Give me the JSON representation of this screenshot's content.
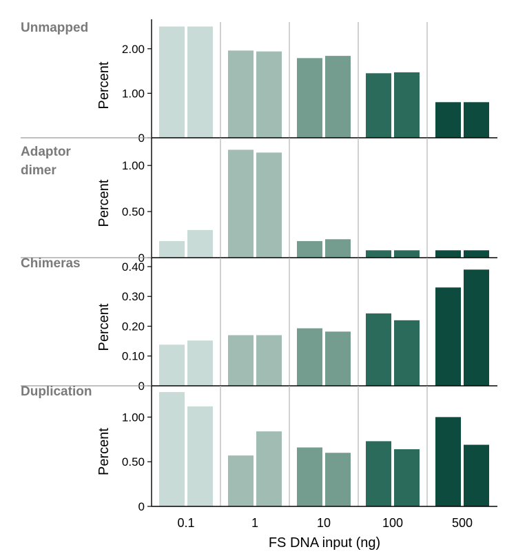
{
  "chart_data": {
    "type": "bar",
    "xlabel": "FS DNA input (ng)",
    "categories": [
      "0.1",
      "1",
      "10",
      "100",
      "500"
    ],
    "colors": [
      "#c9dbd6",
      "#a1bdb3",
      "#749d90",
      "#2b6b5c",
      "#0c4b3d"
    ],
    "panels": [
      {
        "title": "Unmapped",
        "ylabel": "Percent",
        "ylim": [
          0,
          2.6
        ],
        "ticks": [
          0,
          1.0,
          2.0
        ],
        "tick_labels": [
          "0",
          "1.00",
          "2.00"
        ],
        "values": [
          [
            2.5,
            2.5
          ],
          [
            1.96,
            1.94
          ],
          [
            1.79,
            1.84
          ],
          [
            1.45,
            1.47
          ],
          [
            0.8,
            0.8
          ]
        ]
      },
      {
        "title": "Adaptor dimer",
        "ylabel": "Percent",
        "ylim": [
          0,
          1.3
        ],
        "ticks": [
          0,
          0.5,
          1.0
        ],
        "tick_labels": [
          "0",
          "0.50",
          "1.00"
        ],
        "values": [
          [
            0.18,
            0.3
          ],
          [
            1.17,
            1.14
          ],
          [
            0.18,
            0.2
          ],
          [
            0.08,
            0.08
          ],
          [
            0.08,
            0.08
          ]
        ]
      },
      {
        "title": "Chimeras",
        "ylabel": "Percent",
        "ylim": [
          0,
          0.43
        ],
        "ticks": [
          0,
          0.1,
          0.2,
          0.3,
          0.4
        ],
        "tick_labels": [
          "0",
          "0.10",
          "0.20",
          "0.30",
          "0.40"
        ],
        "values": [
          [
            0.138,
            0.152
          ],
          [
            0.17,
            0.17
          ],
          [
            0.193,
            0.182
          ],
          [
            0.243,
            0.22
          ],
          [
            0.33,
            0.39
          ]
        ]
      },
      {
        "title": "Duplication",
        "ylabel": "Percent",
        "ylim": [
          0,
          1.35
        ],
        "ticks": [
          0,
          0.5,
          1.0
        ],
        "tick_labels": [
          "0",
          "0.50",
          "1.00"
        ],
        "values": [
          [
            1.28,
            1.12
          ],
          [
            0.57,
            0.84
          ],
          [
            0.66,
            0.6
          ],
          [
            0.73,
            0.64
          ],
          [
            1.0,
            0.69
          ]
        ]
      }
    ]
  }
}
